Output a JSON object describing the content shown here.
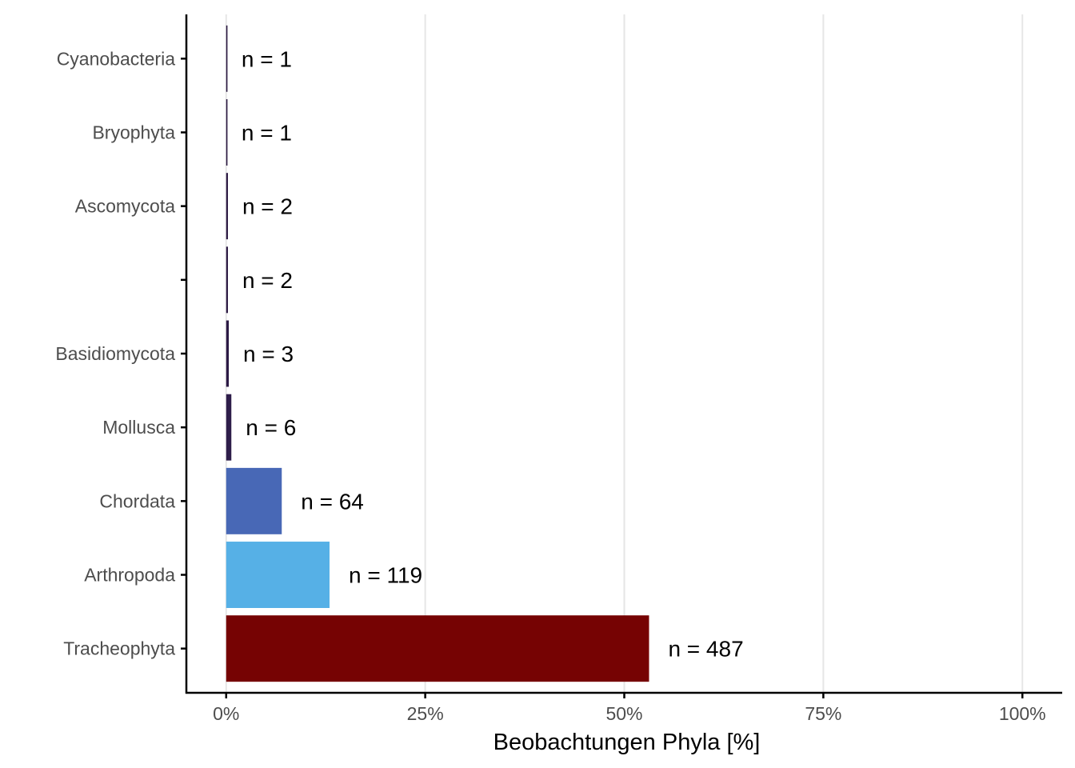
{
  "chart_data": {
    "type": "bar",
    "orientation": "horizontal",
    "xlabel": "Beobachtungen Phyla [%]",
    "ylabel": "",
    "xlim": [
      -0.05,
      1.05
    ],
    "x_ticks": [
      0,
      0.25,
      0.5,
      0.75,
      1.0
    ],
    "x_tick_labels": [
      "0%",
      "25%",
      "50%",
      "75%",
      "100%"
    ],
    "grid": "vertical major",
    "legend": "none",
    "bars": [
      {
        "category": "Tracheophyta",
        "value": 0.5311,
        "count_label": "n = 487",
        "color": "#760303"
      },
      {
        "category": "Arthropoda",
        "value": 0.1298,
        "count_label": "n = 119",
        "color": "#56b0e6"
      },
      {
        "category": "Chordata",
        "value": 0.0698,
        "count_label": "n = 64",
        "color": "#4868b6"
      },
      {
        "category": "Mollusca",
        "value": 0.0065,
        "count_label": "n = 6",
        "color": "#2e1d4a"
      },
      {
        "category": "Basidiomycota",
        "value": 0.0033,
        "count_label": "n = 3",
        "color": "#2c1a45"
      },
      {
        "category": "",
        "value": 0.0022,
        "count_label": "n = 2",
        "color": "#2a1842"
      },
      {
        "category": "Ascomycota",
        "value": 0.0022,
        "count_label": "n = 2",
        "color": "#2a1842"
      },
      {
        "category": "Bryophyta",
        "value": 0.0011,
        "count_label": "n = 1",
        "color": "#29173f"
      },
      {
        "category": "Cyanobacteria",
        "value": 0.0011,
        "count_label": "n = 1",
        "color": "#29173f"
      }
    ]
  }
}
